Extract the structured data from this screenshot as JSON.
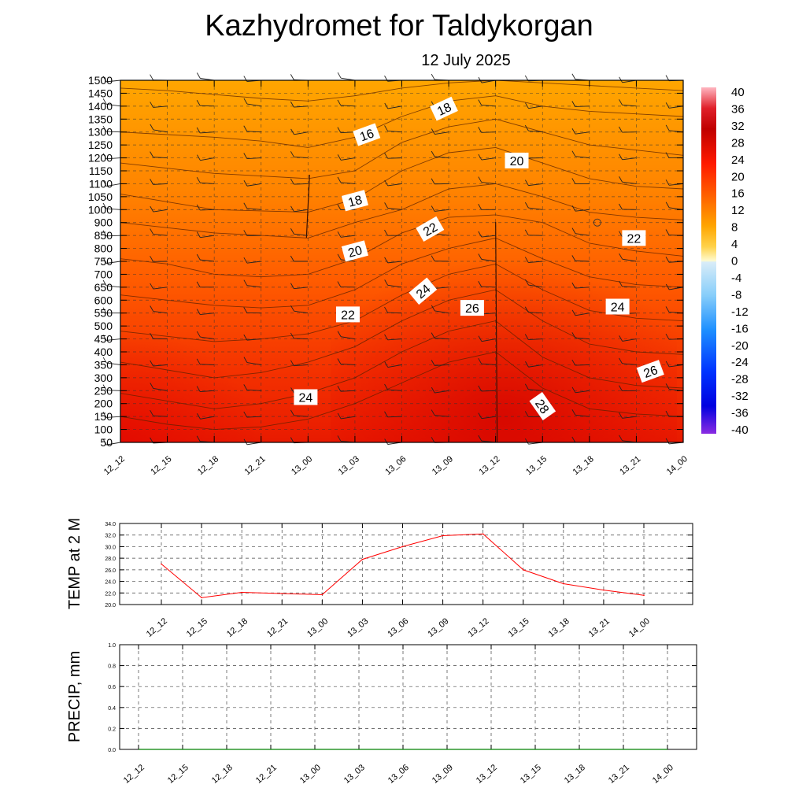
{
  "header": {
    "title": "Kazhydromet  for Taldykorgan",
    "subtitle": "12 July 2025"
  },
  "chart_data": [
    {
      "type": "heatmap",
      "name": "cross-section",
      "x": [
        "12_12",
        "12_15",
        "12_18",
        "12_21",
        "13_00",
        "13_03",
        "13_06",
        "13_09",
        "13_12",
        "13_15",
        "13_18",
        "13_21",
        "14_00"
      ],
      "y_ticks": [
        50,
        100,
        150,
        200,
        250,
        300,
        350,
        400,
        450,
        500,
        550,
        600,
        650,
        700,
        750,
        800,
        850,
        900,
        1000,
        1050,
        1100,
        1150,
        1200,
        1250,
        1300,
        1350,
        1400,
        1450,
        1500
      ],
      "colorbar": {
        "ticks": [
          "40",
          "36",
          "32",
          "28",
          "24",
          "20",
          "16",
          "12",
          "8",
          "4",
          "0",
          "-4",
          "-8",
          "-12",
          "-16",
          "-20",
          "-24",
          "-28",
          "-32",
          "-36",
          "-40"
        ],
        "range": [
          -40,
          40
        ]
      },
      "contour_labels": [
        {
          "text": "16",
          "x": 5.25,
          "y": 1290
        },
        {
          "text": "18",
          "x": 6.9,
          "y": 1390
        },
        {
          "text": "20",
          "x": 8.45,
          "y": 1190
        },
        {
          "text": "18",
          "x": 5.0,
          "y": 1035
        },
        {
          "text": "22",
          "x": 6.6,
          "y": 875
        },
        {
          "text": "22",
          "x": 10.95,
          "y": 840
        },
        {
          "text": "20",
          "x": 5.0,
          "y": 790
        },
        {
          "text": "24",
          "x": 6.45,
          "y": 635
        },
        {
          "text": "26",
          "x": 7.5,
          "y": 570
        },
        {
          "text": "24",
          "x": 10.6,
          "y": 575
        },
        {
          "text": "22",
          "x": 4.85,
          "y": 545
        },
        {
          "text": "26",
          "x": 11.3,
          "y": 325
        },
        {
          "text": "24",
          "x": 3.95,
          "y": 225
        },
        {
          "text": "28",
          "x": 9.0,
          "y": 190
        }
      ],
      "colors": {
        "top": "#ffa500",
        "mid": "#ff5a00",
        "bottom": "#e61000",
        "hot": "#d40000"
      }
    },
    {
      "type": "line",
      "name": "temperature",
      "ylabel": "TEMP at 2 M",
      "x": [
        "12_12",
        "12_15",
        "12_18",
        "12_21",
        "13_00",
        "13_03",
        "13_06",
        "13_09",
        "13_12",
        "13_15",
        "13_18",
        "13_21",
        "14_00"
      ],
      "ylim": [
        20.0,
        34.0
      ],
      "y_ticks": [
        "34.0",
        "32.0",
        "30.0",
        "28.0",
        "26.0",
        "24.0",
        "22.0",
        "20.0"
      ],
      "series": [
        {
          "values": [
            27.0,
            21.2,
            22.1,
            21.9,
            21.7,
            27.8,
            30.0,
            31.9,
            32.2,
            26.0,
            23.6,
            22.5,
            21.6
          ],
          "color": "#ff0000"
        }
      ]
    },
    {
      "type": "line",
      "name": "precipitation",
      "ylabel": "PRECIP, mm",
      "x": [
        "12_12",
        "12_15",
        "12_18",
        "12_21",
        "13_00",
        "13_03",
        "13_06",
        "13_09",
        "13_12",
        "13_15",
        "13_18",
        "13_21",
        "14_00"
      ],
      "ylim": [
        0.0,
        1.0
      ],
      "y_ticks": [
        "1.0",
        "0.8",
        "0.6",
        "0.4",
        "0.2",
        "0.0"
      ],
      "series": [
        {
          "values": [
            0,
            0,
            0,
            0,
            0,
            0,
            0,
            0,
            0,
            0,
            0,
            0,
            0
          ],
          "color": "#008000"
        }
      ]
    }
  ]
}
